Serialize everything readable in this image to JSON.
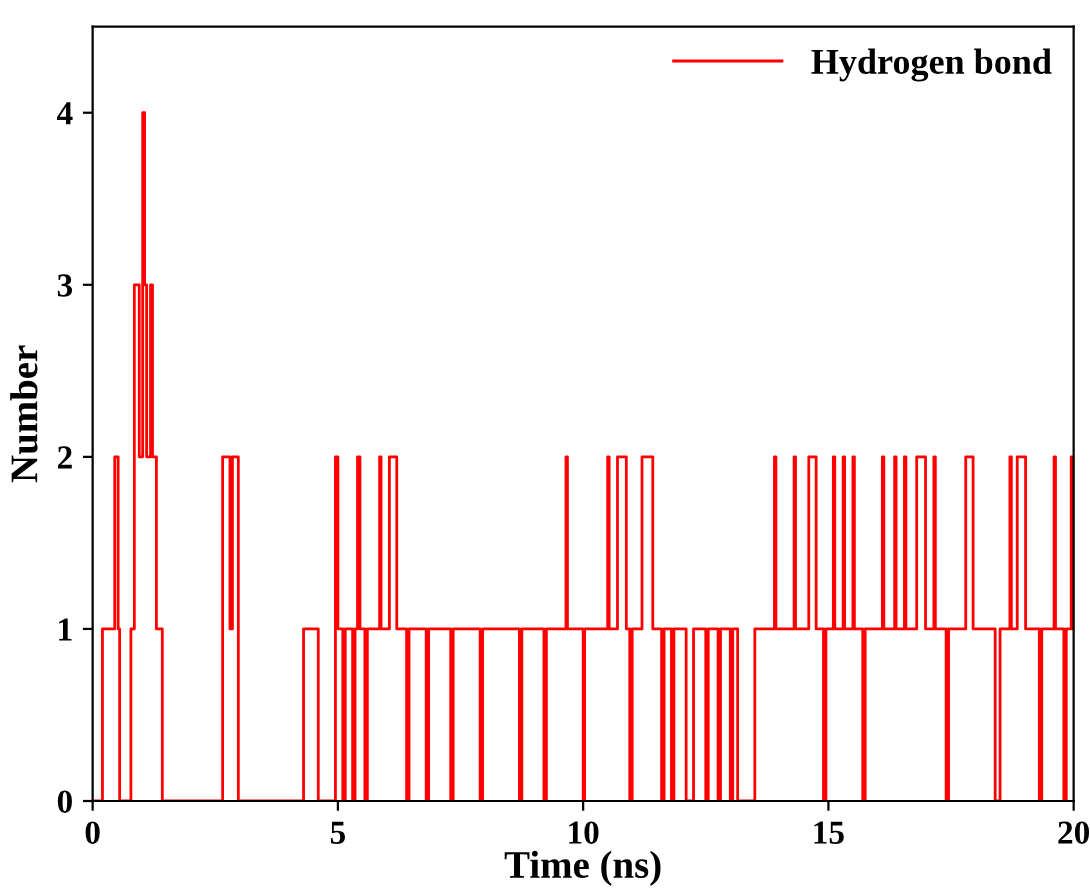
{
  "chart_data": {
    "type": "step",
    "xlabel": "Time (ns)",
    "ylabel": "Number",
    "xlim": [
      0,
      20
    ],
    "ylim": [
      0,
      4.5
    ],
    "xticks": [
      0,
      5,
      10,
      15,
      20
    ],
    "yticks": [
      0,
      1,
      2,
      3,
      4
    ],
    "grid": false,
    "legend": "top right",
    "line_style": "solid",
    "series": [
      {
        "name": "Hydrogen bond",
        "color": "#ff0000",
        "x": [
          0,
          0.2,
          0.45,
          0.52,
          0.55,
          0.78,
          0.85,
          0.95,
          1.02,
          1.06,
          1.1,
          1.18,
          1.22,
          1.3,
          1.42,
          2.65,
          2.8,
          2.85,
          2.97,
          4.3,
          4.6,
          4.95,
          5.0,
          5.1,
          5.15,
          5.3,
          5.35,
          5.4,
          5.45,
          5.55,
          5.6,
          5.85,
          5.88,
          6.05,
          6.2,
          6.4,
          6.45,
          6.8,
          6.85,
          7.3,
          7.35,
          7.9,
          7.95,
          8.7,
          8.75,
          9.2,
          9.25,
          9.65,
          9.68,
          10.0,
          10.03,
          10.5,
          10.53,
          10.7,
          10.88,
          10.95,
          11.0,
          11.2,
          11.42,
          11.6,
          11.65,
          11.8,
          11.85,
          12.1,
          12.25,
          12.5,
          12.55,
          12.75,
          12.8,
          13.0,
          13.05,
          13.15,
          13.5,
          13.9,
          13.93,
          14.3,
          14.33,
          14.6,
          14.75,
          14.9,
          14.95,
          15.1,
          15.13,
          15.3,
          15.33,
          15.5,
          15.53,
          15.7,
          15.75,
          16.1,
          16.13,
          16.35,
          16.38,
          16.55,
          16.58,
          16.8,
          16.98,
          17.15,
          17.18,
          17.4,
          17.45,
          17.8,
          17.95,
          18.4,
          18.5,
          18.7,
          18.73,
          18.85,
          19.02,
          19.3,
          19.35,
          19.6,
          19.63,
          19.8,
          19.85,
          19.95,
          20
        ],
        "values": [
          0,
          1,
          2,
          1,
          0,
          1,
          3,
          2,
          4,
          3,
          2,
          3,
          2,
          1,
          0,
          2,
          1,
          2,
          0,
          1,
          0,
          2,
          1,
          0,
          1,
          0,
          1,
          2,
          1,
          0,
          1,
          2,
          1,
          2,
          1,
          0,
          1,
          0,
          1,
          0,
          1,
          0,
          1,
          0,
          1,
          0,
          1,
          2,
          1,
          0,
          1,
          2,
          1,
          2,
          1,
          0,
          1,
          2,
          1,
          0,
          1,
          0,
          1,
          0,
          1,
          0,
          1,
          0,
          1,
          0,
          1,
          0,
          1,
          2,
          1,
          2,
          1,
          2,
          1,
          0,
          1,
          2,
          1,
          2,
          1,
          2,
          1,
          0,
          1,
          2,
          1,
          2,
          1,
          2,
          1,
          2,
          1,
          2,
          1,
          0,
          1,
          2,
          1,
          0,
          1,
          2,
          1,
          2,
          1,
          0,
          1,
          2,
          1,
          0,
          1,
          2,
          1
        ]
      }
    ]
  }
}
